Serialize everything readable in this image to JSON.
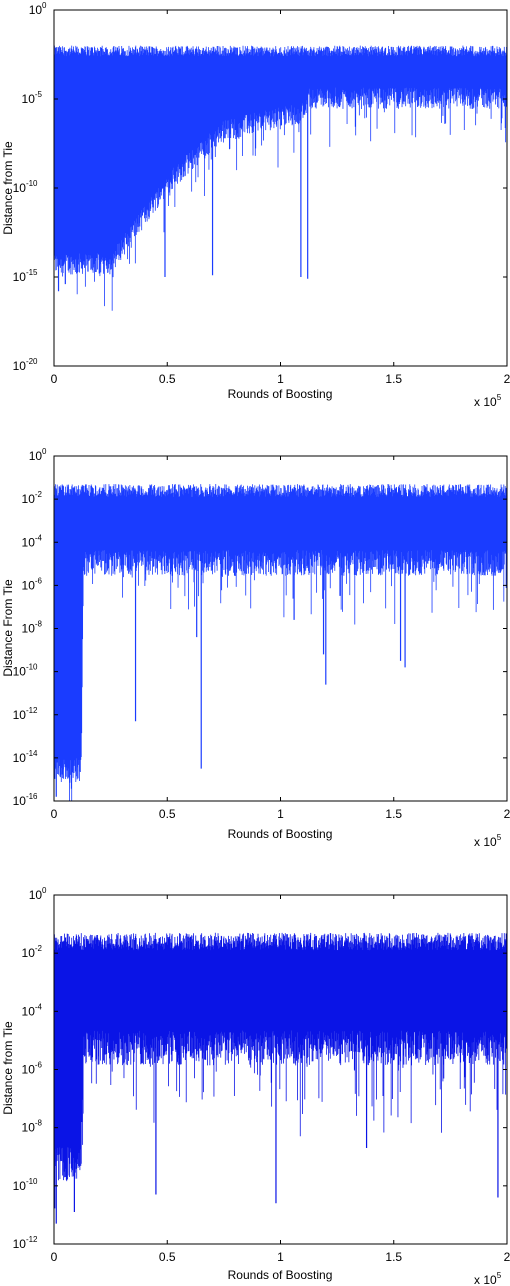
{
  "chart_data": [
    {
      "type": "line",
      "xlabel": "Rounds of Boosting",
      "ylabel": "Distance from Tie",
      "x_multiplier": {
        "base": "x 10",
        "exp": "5"
      },
      "xlim": [
        0,
        2
      ],
      "xticks": [
        "0",
        "0.5",
        "1",
        "1.5",
        "2"
      ],
      "yscale": "log",
      "ylim_exp": [
        -20,
        0
      ],
      "yticks": [
        {
          "base": "10",
          "exp": "0"
        },
        {
          "base": "10",
          "exp": "-5"
        },
        {
          "base": "10",
          "exp": "-10"
        },
        {
          "base": "10",
          "exp": "-15"
        },
        {
          "base": "10",
          "exp": "-20"
        }
      ],
      "series_color": "#1a3cff",
      "upper_envelope_exp": -2.3,
      "dense_band_floor_exp": [
        [
          0,
          -14.5
        ],
        [
          0.25,
          -14.5
        ],
        [
          0.5,
          -10
        ],
        [
          0.75,
          -7
        ],
        [
          1.1,
          -6
        ],
        [
          1.12,
          -5.2
        ],
        [
          2,
          -5.2
        ]
      ],
      "lower_spikes": [
        {
          "x": 0.02,
          "exp": -15.8
        },
        {
          "x": 0.05,
          "exp": -15.4
        },
        {
          "x": 0.1,
          "exp": -14.8
        },
        {
          "x": 0.15,
          "exp": -14.7
        },
        {
          "x": 0.2,
          "exp": -14.8
        },
        {
          "x": 0.49,
          "exp": -15
        },
        {
          "x": 0.7,
          "exp": -14.9
        },
        {
          "x": 1.09,
          "exp": -15
        },
        {
          "x": 1.12,
          "exp": -15.1
        }
      ]
    },
    {
      "type": "line",
      "xlabel": "Rounds of Boosting",
      "ylabel": "Distance From Tie",
      "x_multiplier": {
        "base": "x 10",
        "exp": "5"
      },
      "xlim": [
        0,
        2
      ],
      "xticks": [
        "0",
        "0.5",
        "1",
        "1.5",
        "2"
      ],
      "yscale": "log",
      "ylim_exp": [
        -16,
        0
      ],
      "yticks": [
        {
          "base": "10",
          "exp": "0"
        },
        {
          "base": "10",
          "exp": "-2"
        },
        {
          "base": "10",
          "exp": "-4"
        },
        {
          "base": "10",
          "exp": "-6"
        },
        {
          "base": "10",
          "exp": "-8"
        },
        {
          "base": "10",
          "exp": "-10"
        },
        {
          "base": "10",
          "exp": "-12"
        },
        {
          "base": "10",
          "exp": "-14"
        },
        {
          "base": "10",
          "exp": "-16"
        }
      ],
      "series_color": "#1a3cff",
      "upper_envelope_exp": -1.6,
      "dense_band_floor_exp": [
        [
          0,
          -14.8
        ],
        [
          0.12,
          -14.8
        ],
        [
          0.13,
          -5.2
        ],
        [
          2,
          -5.2
        ]
      ],
      "lower_spikes": [
        {
          "x": 0.01,
          "exp": -15.8
        },
        {
          "x": 0.36,
          "exp": -12.3
        },
        {
          "x": 0.63,
          "exp": -8.4
        },
        {
          "x": 0.65,
          "exp": -14.5
        },
        {
          "x": 1.06,
          "exp": -7.6
        },
        {
          "x": 1.19,
          "exp": -9.2
        },
        {
          "x": 1.2,
          "exp": -10.6
        },
        {
          "x": 1.53,
          "exp": -9.5
        },
        {
          "x": 1.55,
          "exp": -9.8
        }
      ]
    },
    {
      "type": "line",
      "xlabel": "Rounds of Boosting",
      "ylabel": "Distance from Tie",
      "x_multiplier": {
        "base": "x 10",
        "exp": "5"
      },
      "xlim": [
        0,
        2
      ],
      "xticks": [
        "0",
        "0.5",
        "1",
        "1.5",
        "2"
      ],
      "yscale": "log",
      "ylim_exp": [
        -12,
        0
      ],
      "yticks": [
        {
          "base": "10",
          "exp": "0"
        },
        {
          "base": "10",
          "exp": "-2"
        },
        {
          "base": "10",
          "exp": "-4"
        },
        {
          "base": "10",
          "exp": "-6"
        },
        {
          "base": "10",
          "exp": "-8"
        },
        {
          "base": "10",
          "exp": "-10"
        },
        {
          "base": "10",
          "exp": "-12"
        }
      ],
      "series_color": "#0a14e6",
      "upper_envelope_exp": -1.6,
      "dense_band_floor_exp": [
        [
          0,
          -9.5
        ],
        [
          0.12,
          -9.5
        ],
        [
          0.13,
          -5.5
        ],
        [
          2,
          -5.5
        ]
      ],
      "lower_spikes": [
        {
          "x": 0.01,
          "exp": -11.3
        },
        {
          "x": 0.09,
          "exp": -10.9
        },
        {
          "x": 0.45,
          "exp": -10.3
        },
        {
          "x": 0.98,
          "exp": -10.6
        },
        {
          "x": 1.38,
          "exp": -8.7
        },
        {
          "x": 1.96,
          "exp": -10.4
        }
      ]
    }
  ]
}
